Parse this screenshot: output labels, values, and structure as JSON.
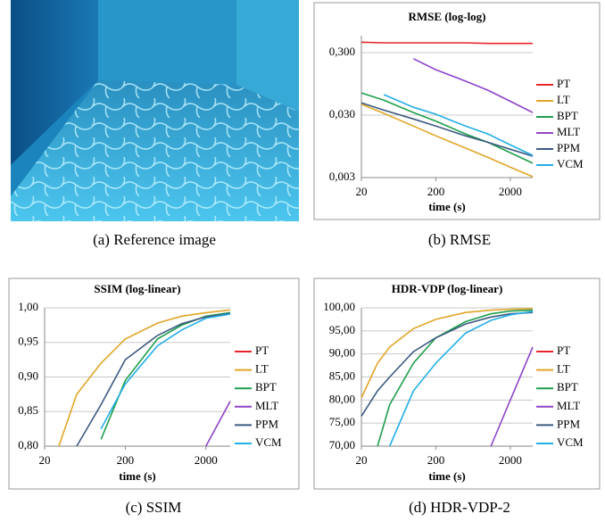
{
  "image_caption": "(a) Reference image",
  "chart_data": [
    {
      "type": "line",
      "title": "RMSE (log-log)",
      "x_label": "time (s)",
      "caption": "(b) RMSE",
      "x_log": true,
      "y_log": true,
      "grid": true,
      "legend": "right",
      "x": [
        20,
        40,
        100,
        200,
        500,
        1000,
        2000,
        4000
      ],
      "xlim": [
        20,
        4000
      ],
      "xticks": [
        20,
        200,
        2000
      ],
      "ylim": [
        0.003,
        0.56
      ],
      "yticks": [
        {
          "value": 0.3,
          "label": "0,300"
        },
        {
          "value": 0.03,
          "label": "0,030"
        },
        {
          "value": 0.003,
          "label": "0,003"
        }
      ],
      "series": [
        {
          "name": "PT",
          "color": "#e8262a",
          "values": [
            0.44,
            0.43,
            0.43,
            0.43,
            0.43,
            0.42,
            0.42,
            0.42
          ]
        },
        {
          "name": "LT",
          "color": "#e0a526",
          "values": [
            0.045,
            0.032,
            0.02,
            0.014,
            0.0089,
            0.0063,
            0.0044,
            0.0031
          ]
        },
        {
          "name": "BPT",
          "color": "#1e9e4b",
          "values": [
            0.068,
            0.052,
            0.033,
            0.024,
            0.015,
            0.011,
            0.0075,
            0.0051
          ]
        },
        {
          "name": "MLT",
          "color": "#8e44c8",
          "values": [
            null,
            null,
            0.24,
            0.16,
            0.105,
            0.075,
            0.05,
            0.033
          ]
        },
        {
          "name": "PPM",
          "color": "#3b5a80",
          "values": [
            0.047,
            0.036,
            0.026,
            0.02,
            0.014,
            0.011,
            0.0085,
            0.0066
          ]
        },
        {
          "name": "VCM",
          "color": "#22aee6",
          "values": [
            null,
            0.064,
            0.04,
            0.031,
            0.02,
            0.015,
            0.01,
            0.0068
          ]
        }
      ]
    },
    {
      "type": "line",
      "title": "SSIM (log-linear)",
      "x_label": "time (s)",
      "caption": "(c) SSIM",
      "x_log": true,
      "y_log": false,
      "grid": true,
      "legend": "right",
      "x": [
        30,
        50,
        100,
        200,
        500,
        1000,
        2000,
        4000
      ],
      "xlim": [
        20,
        4000
      ],
      "xticks": [
        20,
        200,
        2000
      ],
      "ylim": [
        0.8,
        1.0
      ],
      "yticks": [
        {
          "value": 1.0,
          "label": "1,00"
        },
        {
          "value": 0.95,
          "label": "0,95"
        },
        {
          "value": 0.9,
          "label": "0,90"
        },
        {
          "value": 0.85,
          "label": "0,85"
        },
        {
          "value": 0.8,
          "label": "0,80"
        }
      ],
      "series": [
        {
          "name": "PT",
          "color": "#e8262a",
          "values": [
            null,
            null,
            null,
            null,
            null,
            null,
            null,
            null
          ]
        },
        {
          "name": "LT",
          "color": "#e0a526",
          "values": [
            0.8,
            0.875,
            0.92,
            0.955,
            0.978,
            0.988,
            0.993,
            0.997
          ]
        },
        {
          "name": "BPT",
          "color": "#1e9e4b",
          "values": [
            null,
            null,
            0.81,
            0.895,
            0.955,
            0.975,
            0.988,
            0.993
          ]
        },
        {
          "name": "MLT",
          "color": "#8e44c8",
          "values": [
            null,
            null,
            null,
            null,
            null,
            null,
            0.8,
            0.865
          ]
        },
        {
          "name": "PPM",
          "color": "#3b5a80",
          "values": [
            null,
            0.8,
            0.86,
            0.925,
            0.96,
            0.977,
            0.987,
            0.992
          ]
        },
        {
          "name": "VCM",
          "color": "#22aee6",
          "values": [
            null,
            null,
            0.825,
            0.89,
            0.945,
            0.968,
            0.985,
            0.991
          ]
        }
      ]
    },
    {
      "type": "line",
      "title": "HDR-VDP (log-linear)",
      "x_label": "time (s)",
      "caption": "(d) HDR-VDP-2",
      "x_log": true,
      "y_log": false,
      "grid": true,
      "legend": "right",
      "x": [
        20,
        33,
        48,
        100,
        200,
        500,
        1100,
        2000,
        4000
      ],
      "xlim": [
        20,
        4000
      ],
      "xticks": [
        20,
        200,
        2000
      ],
      "ylim": [
        70,
        100
      ],
      "yticks": [
        {
          "value": 100,
          "label": "100,00"
        },
        {
          "value": 95,
          "label": "95,00"
        },
        {
          "value": 90,
          "label": "90,00"
        },
        {
          "value": 85,
          "label": "85,00"
        },
        {
          "value": 80,
          "label": "80,00"
        },
        {
          "value": 75,
          "label": "75,00"
        },
        {
          "value": 70,
          "label": "70,00"
        }
      ],
      "series": [
        {
          "name": "PT",
          "color": "#e8262a",
          "values": [
            null,
            null,
            null,
            null,
            null,
            null,
            null,
            null,
            null
          ]
        },
        {
          "name": "LT",
          "color": "#e0a526",
          "values": [
            80.5,
            88,
            91.5,
            95.5,
            97.5,
            99,
            99.5,
            99.7,
            99.8
          ]
        },
        {
          "name": "BPT",
          "color": "#1e9e4b",
          "values": [
            null,
            70,
            79,
            88,
            93.5,
            97,
            98.7,
            99.3,
            99.5
          ]
        },
        {
          "name": "MLT",
          "color": "#8e44c8",
          "values": [
            null,
            null,
            null,
            null,
            null,
            null,
            70,
            80,
            91.5
          ]
        },
        {
          "name": "PPM",
          "color": "#3b5a80",
          "values": [
            76.5,
            82,
            85,
            90.5,
            93.5,
            96.5,
            98,
            98.7,
            99
          ]
        },
        {
          "name": "VCM",
          "color": "#22aee6",
          "values": [
            null,
            null,
            70,
            82,
            88,
            94.5,
            97.3,
            98.5,
            99.2
          ]
        }
      ]
    }
  ]
}
